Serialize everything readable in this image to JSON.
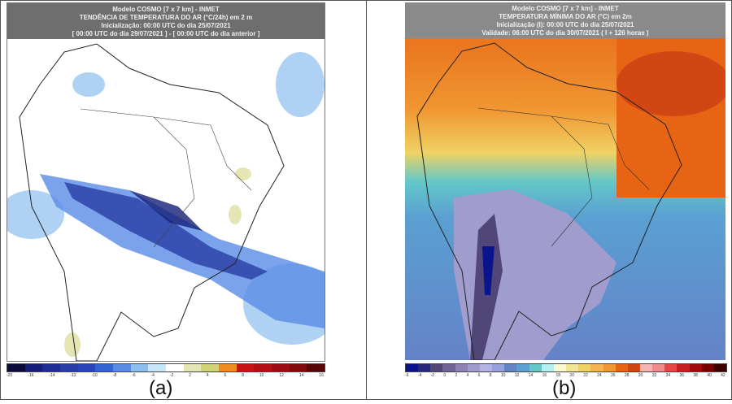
{
  "panel_a": {
    "header": [
      "Modelo COSMO [7 x 7 km] - INMET",
      "TENDÊNCIA DE TEMPERATURA DO AR (°C/24h) em 2 m",
      "Inicialização: 00:00 UTC do dia 25/07/2021",
      "[ 00:00 UTC do dia 29/07/2021 ] - [ 00:00 UTC do dia anterior ]"
    ],
    "colorbar_colors": [
      "#0a0a3c",
      "#141e78",
      "#1e2d96",
      "#283ca5",
      "#2846b9",
      "#3264d2",
      "#5a8ce6",
      "#8cbef0",
      "#c8e6fa",
      "#ffffff",
      "#e6e6b4",
      "#d2d278",
      "#f08c1e",
      "#c81414",
      "#b40f14",
      "#a00a14",
      "#820a0a",
      "#5a0505"
    ],
    "colorbar_ticks": [
      "-20",
      "-16",
      "-14",
      "-12",
      "-10",
      "-8",
      "-6",
      "-4",
      "-2",
      "2",
      "4",
      "6",
      "8",
      "10",
      "12",
      "14",
      "16"
    ],
    "label": "(a)"
  },
  "panel_b": {
    "header": [
      "Modelo COSMO [7 x 7 km] - INMET",
      "TEMPERATURA MÍNIMA DO AR (°C) em 2m",
      "Inicialização (I): 00:00 UTC do dia 25/07/2021",
      "Validade: 06:00 UTC do dia 30/07/2021 ( I + 126 horas )"
    ],
    "colorbar_colors": [
      "#0a148c",
      "#28287a",
      "#504678",
      "#6e6496",
      "#8c82b4",
      "#a09ccd",
      "#b4b4e6",
      "#96a0dc",
      "#6482c8",
      "#5aa0d2",
      "#64c8c8",
      "#b4f0f0",
      "#fafad2",
      "#f0e696",
      "#f0d264",
      "#f5b450",
      "#f09632",
      "#e66414",
      "#d24614",
      "#f5b4b4",
      "#f08c8c",
      "#e64646",
      "#c81e1e",
      "#a00a0a",
      "#780000",
      "#3c0000"
    ],
    "colorbar_ticks": [
      "-6",
      "-4",
      "-2",
      "0",
      "2",
      "4",
      "6",
      "8",
      "10",
      "12",
      "14",
      "16",
      "18",
      "20",
      "22",
      "24",
      "26",
      "28",
      "30",
      "32",
      "34",
      "36",
      "38",
      "40",
      "42"
    ],
    "label": "(b)"
  }
}
